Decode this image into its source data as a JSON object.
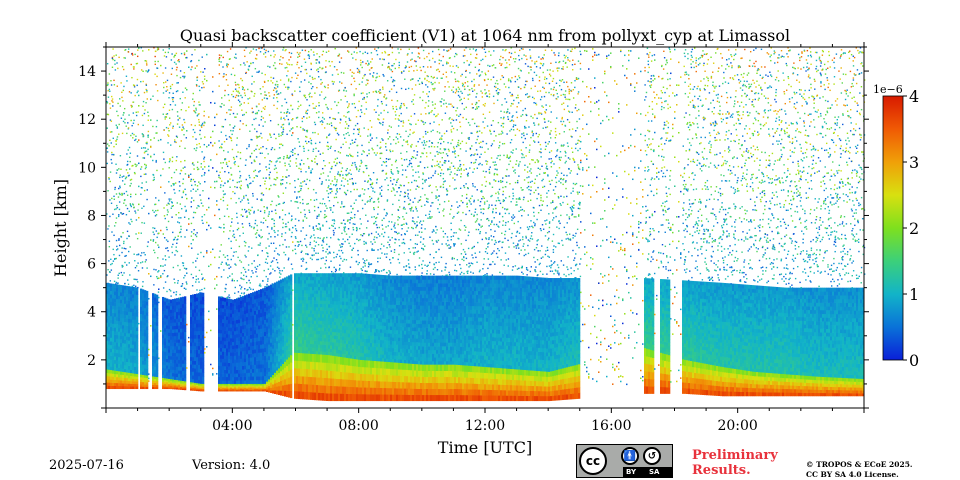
{
  "chart_data": {
    "type": "heatmap",
    "title": "Quasi backscatter coefficient (V1) at 1064 nm from pollyxt_cyp at Limassol",
    "xlabel": "Time [UTC]",
    "ylabel": "Height [km]",
    "xlim_hours": [
      0,
      24
    ],
    "ylim": [
      0,
      15
    ],
    "x_ticks": [
      {
        "hour": 4,
        "label": "04:00"
      },
      {
        "hour": 8,
        "label": "08:00"
      },
      {
        "hour": 12,
        "label": "12:00"
      },
      {
        "hour": 16,
        "label": "16:00"
      },
      {
        "hour": 20,
        "label": "20:00"
      }
    ],
    "y_ticks": [
      2,
      4,
      6,
      8,
      10,
      12,
      14
    ],
    "colorbar": {
      "range": [
        0,
        4
      ],
      "ticks": [
        0,
        1,
        2,
        3,
        4
      ],
      "multiplier_label": "1e−6",
      "colormap": [
        "#0a1fd8",
        "#0a72d8",
        "#12b4c8",
        "#3cd07a",
        "#7ee01e",
        "#d8e010",
        "#f0a008",
        "#f05a04",
        "#d81a00"
      ]
    },
    "segments": [
      {
        "t": 0.0,
        "top": 5.2,
        "near": 1.6,
        "low": 0.8,
        "level": 1.0
      },
      {
        "t": 1.0,
        "top": 5.0,
        "near": 1.4,
        "low": 0.8,
        "level": 0.9
      },
      {
        "t": 2.0,
        "top": 4.5,
        "near": 1.2,
        "low": 0.8,
        "level": 0.5
      },
      {
        "t": 3.0,
        "top": 4.8,
        "near": 1.0,
        "low": 0.7,
        "level": 0.4
      },
      {
        "t": 4.0,
        "top": 4.5,
        "near": 1.0,
        "low": 0.7,
        "level": 0.4
      },
      {
        "t": 5.0,
        "top": 5.0,
        "near": 1.0,
        "low": 0.7,
        "level": 0.5
      },
      {
        "t": 5.9,
        "top": 5.6,
        "near": 2.3,
        "low": 0.4,
        "level": 1.4
      },
      {
        "t": 7.0,
        "top": 5.6,
        "near": 2.2,
        "low": 0.3,
        "level": 1.3
      },
      {
        "t": 8.0,
        "top": 5.6,
        "near": 2.0,
        "low": 0.3,
        "level": 1.2
      },
      {
        "t": 9.0,
        "top": 5.5,
        "near": 1.9,
        "low": 0.3,
        "level": 1.0
      },
      {
        "t": 10.0,
        "top": 5.5,
        "near": 1.8,
        "low": 0.3,
        "level": 0.9
      },
      {
        "t": 11.0,
        "top": 5.5,
        "near": 1.8,
        "low": 0.3,
        "level": 0.9
      },
      {
        "t": 12.0,
        "top": 5.5,
        "near": 1.7,
        "low": 0.3,
        "level": 1.0
      },
      {
        "t": 13.0,
        "top": 5.5,
        "near": 1.6,
        "low": 0.3,
        "level": 1.0
      },
      {
        "t": 14.0,
        "top": 5.4,
        "near": 1.5,
        "low": 0.3,
        "level": 1.0
      },
      {
        "t": 17.0,
        "top": 5.4,
        "near": 2.5,
        "low": 0.6,
        "level": 1.4
      },
      {
        "t": 18.3,
        "top": 5.3,
        "near": 2.0,
        "low": 0.6,
        "level": 1.3
      },
      {
        "t": 19.5,
        "top": 5.2,
        "near": 1.7,
        "low": 0.5,
        "level": 1.2
      },
      {
        "t": 20.5,
        "top": 5.1,
        "near": 1.5,
        "low": 0.5,
        "level": 1.2
      },
      {
        "t": 21.5,
        "top": 5.0,
        "near": 1.4,
        "low": 0.5,
        "level": 1.2
      },
      {
        "t": 22.5,
        "top": 5.0,
        "near": 1.3,
        "low": 0.5,
        "level": 1.1
      },
      {
        "t": 24.0,
        "top": 5.0,
        "near": 1.2,
        "low": 0.5,
        "level": 1.1
      }
    ],
    "gaps_hours": [
      [
        0.95,
        1.05
      ],
      [
        1.3,
        1.4
      ],
      [
        1.6,
        1.75
      ],
      [
        2.5,
        2.65
      ],
      [
        3.1,
        3.5
      ],
      [
        5.85,
        5.95
      ],
      [
        15.0,
        17.0
      ],
      [
        17.35,
        17.5
      ],
      [
        17.8,
        18.2
      ]
    ]
  },
  "footer": {
    "date": "2025-07-16",
    "version": "Version: 4.0",
    "license_badge": {
      "cc": "cc",
      "by": "BY",
      "sa": "SA",
      "by_icon": "person-icon",
      "sa_icon": "share-alike-icon"
    },
    "preliminary_line1": "Preliminary",
    "preliminary_line2": "Results.",
    "copyright_line1": "© TROPOS & ECoE 2025.",
    "copyright_line2": "CC BY SA 4.0 License."
  }
}
